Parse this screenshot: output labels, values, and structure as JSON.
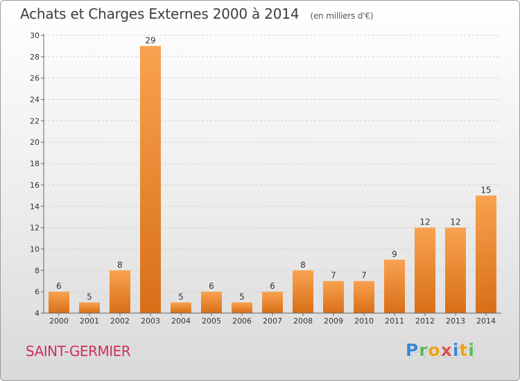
{
  "header": {
    "title": "Achats et Charges Externes 2000 à 2014",
    "unit": "(en milliers d'€)"
  },
  "footer": {
    "commune": "SAINT-GERMIER",
    "logo_letters": [
      "P",
      "r",
      "o",
      "x",
      "i",
      "t",
      "i"
    ],
    "logo_colors": [
      "#3a86d4",
      "#5cb85c",
      "#e8a41a",
      "#d9534f",
      "#3a86d4",
      "#e8a41a",
      "#5cb85c"
    ]
  },
  "colors": {
    "bar_light": "#f9a24f",
    "bar_dark": "#d86f18",
    "grid": "#cfcfcf",
    "axis": "#666666",
    "text": "#333333"
  },
  "chart_data": {
    "type": "bar",
    "title": "Achats et Charges Externes 2000 à 2014",
    "categories": [
      "2000",
      "2001",
      "2002",
      "2003",
      "2004",
      "2005",
      "2006",
      "2007",
      "2008",
      "2009",
      "2010",
      "2011",
      "2012",
      "2013",
      "2014"
    ],
    "values": [
      6,
      5,
      8,
      29,
      5,
      6,
      5,
      6,
      8,
      7,
      7,
      9,
      12,
      12,
      15
    ],
    "ylim": [
      4,
      30
    ],
    "yticks": [
      4,
      6,
      8,
      10,
      12,
      14,
      16,
      18,
      20,
      22,
      24,
      26,
      28,
      30
    ],
    "grid": "horizontal dashed",
    "xlabel": "",
    "ylabel": ""
  }
}
